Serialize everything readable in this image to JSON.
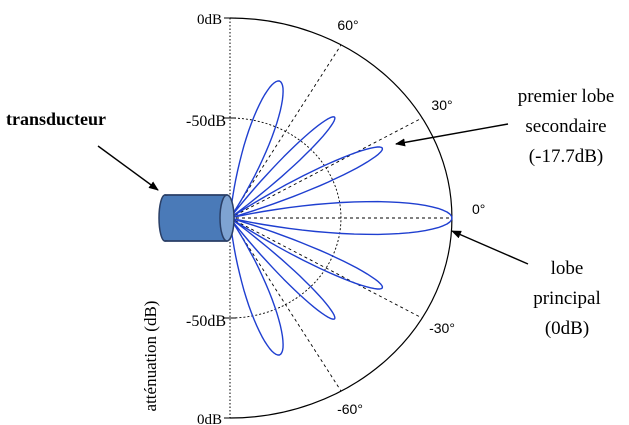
{
  "figure": {
    "type": "polar-directivity-diagram",
    "radial_axis": {
      "title": "atténuation (dB)",
      "tick_labels": {
        "top_outer": "0dB",
        "top_mid": "-50dB",
        "bottom_mid": "-50dB",
        "bottom_outer": "0dB"
      }
    },
    "angle_labels": {
      "a60": "60°",
      "a30": "30°",
      "a0": "0°",
      "am30": "-30°",
      "am60": "-60°"
    },
    "annotations": {
      "transducer": "transducteur",
      "side_lobe": {
        "line1": "premier lobe",
        "line2": "secondaire",
        "line3": "(-17.7dB)"
      },
      "main_lobe": {
        "line1": "lobe",
        "line2": "principal",
        "line3": "(0dB)"
      }
    },
    "pattern": {
      "color": "#1f3fd0",
      "main_lobe_db": 0,
      "first_side_lobe_db": -17.7,
      "lobes": [
        {
          "center_deg": 0,
          "half_width_deg": 14,
          "level": 1.0
        },
        {
          "center_deg": 27,
          "half_width_deg": 9,
          "level": 0.77
        },
        {
          "center_deg": -27,
          "half_width_deg": 9,
          "level": 0.77
        },
        {
          "center_deg": 47,
          "half_width_deg": 8,
          "level": 0.69
        },
        {
          "center_deg": -47,
          "half_width_deg": 8,
          "level": 0.69
        },
        {
          "center_deg": 72,
          "half_width_deg": 13,
          "level": 0.72
        },
        {
          "center_deg": -72,
          "half_width_deg": 13,
          "level": 0.72
        }
      ]
    },
    "transducer_color": "#4a7ab8"
  }
}
